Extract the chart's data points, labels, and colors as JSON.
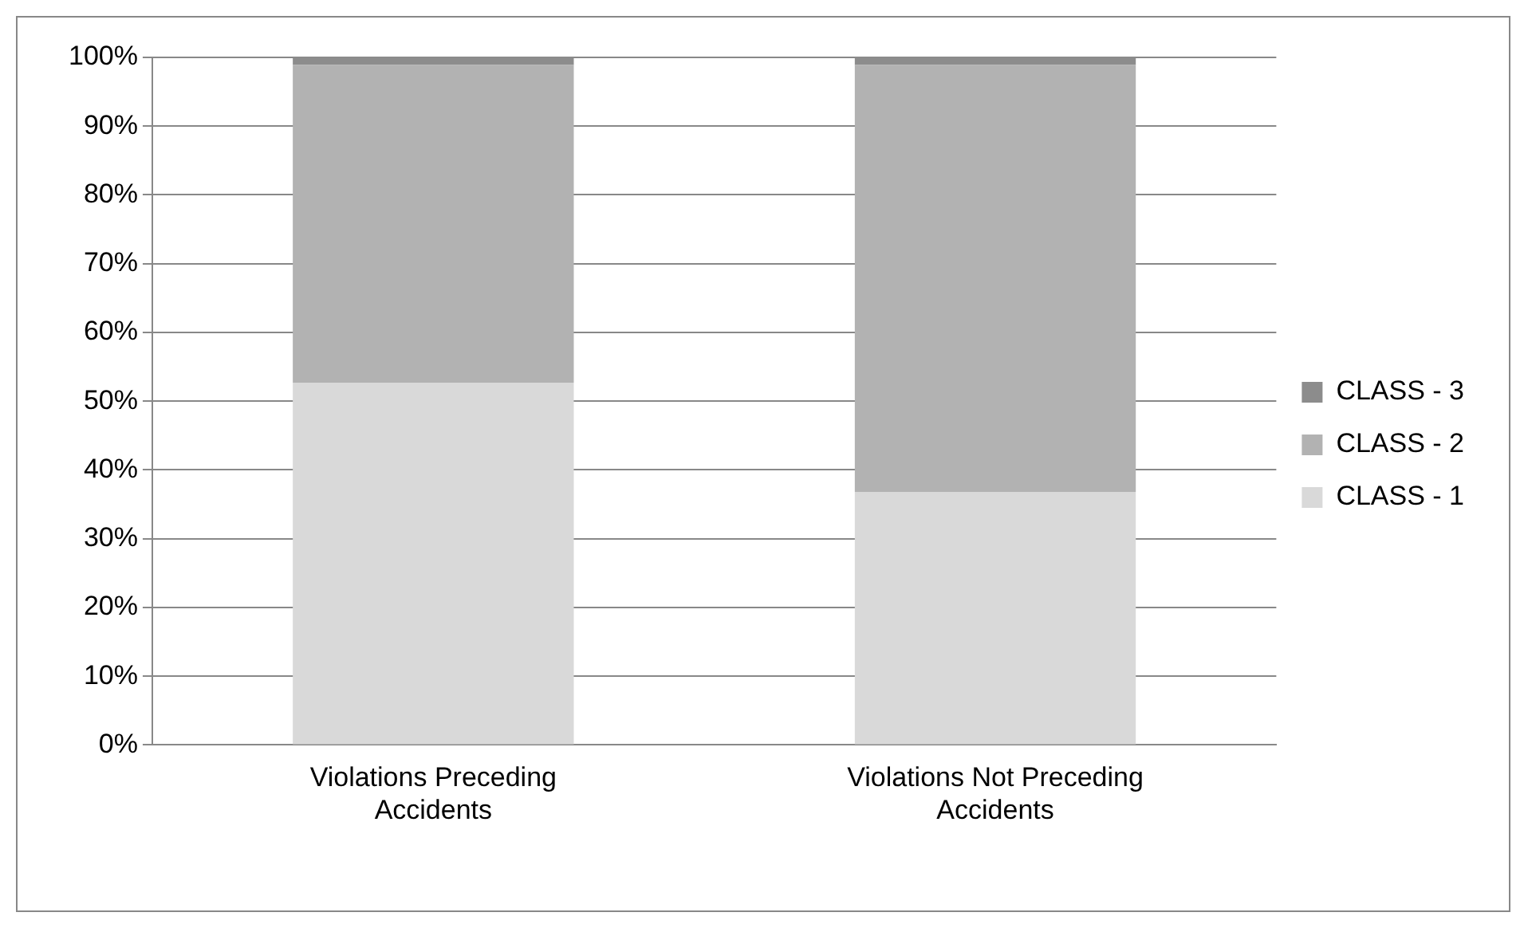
{
  "chart_data": {
    "type": "bar",
    "stacked": true,
    "categories": [
      "Violations Preceding Accidents",
      "Violations Not Preceding Accidents"
    ],
    "series": [
      {
        "name": "CLASS - 1",
        "color": "#d9d9d9",
        "values": [
          52.7,
          36.8
        ]
      },
      {
        "name": "CLASS - 2",
        "color": "#b2b2b2",
        "values": [
          46.2,
          62.1
        ]
      },
      {
        "name": "CLASS - 3",
        "color": "#8c8c8c",
        "values": [
          1.1,
          1.1
        ]
      }
    ],
    "ylim": [
      0,
      100
    ],
    "yticks": [
      {
        "value": 0,
        "label": "0%"
      },
      {
        "value": 10,
        "label": "10%"
      },
      {
        "value": 20,
        "label": "20%"
      },
      {
        "value": 30,
        "label": "30%"
      },
      {
        "value": 40,
        "label": "40%"
      },
      {
        "value": 50,
        "label": "50%"
      },
      {
        "value": 60,
        "label": "60%"
      },
      {
        "value": 70,
        "label": "70%"
      },
      {
        "value": 80,
        "label": "80%"
      },
      {
        "value": 90,
        "label": "90%"
      },
      {
        "value": 100,
        "label": "100%"
      }
    ],
    "grid": "y",
    "legend": "right"
  }
}
